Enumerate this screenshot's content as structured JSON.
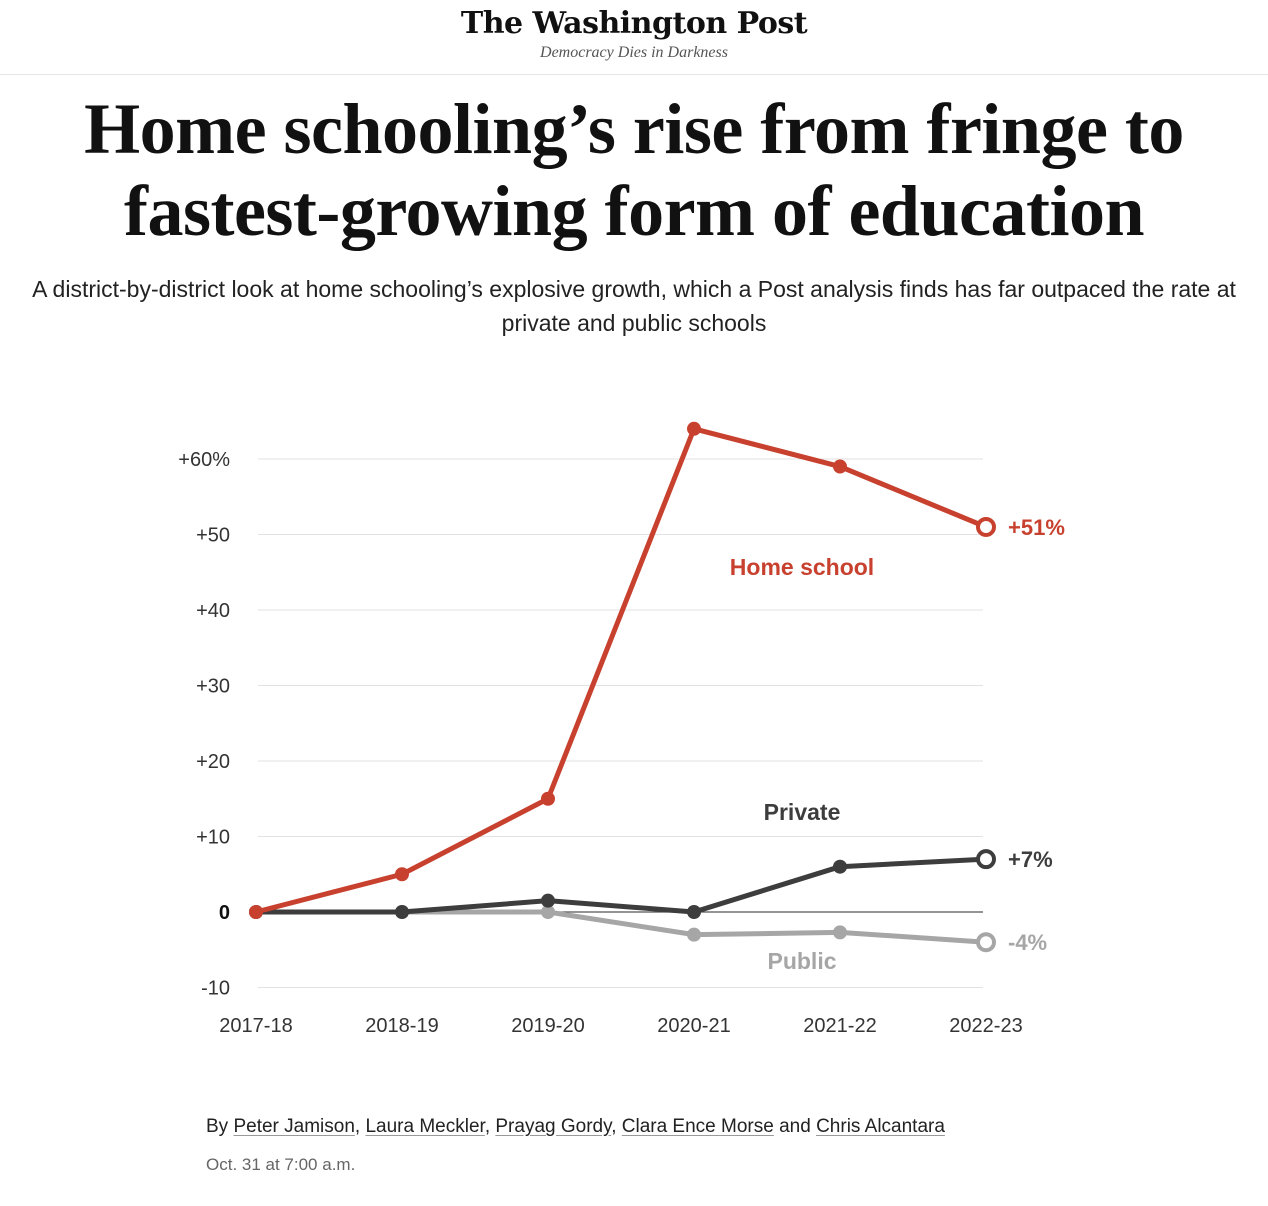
{
  "masthead": {
    "logo": "The Washington Post",
    "tagline": "Democracy Dies in Darkness"
  },
  "article": {
    "headline_line1": "Home schooling’s rise from fringe to",
    "headline_line2": "fastest-growing form of education",
    "dek": "A district-by-district look at home schooling’s explosive growth, which a Post analysis finds has far outpaced the rate at private and public schools",
    "byline_prefix": "By",
    "authors": [
      "Peter Jamison",
      "Laura Meckler",
      "Prayag Gordy",
      "Clara Ence Morse",
      "Chris Alcantara"
    ],
    "byline_separator": ", ",
    "byline_and": " and ",
    "date": "Oct. 31 at 7:00 a.m."
  },
  "colors": {
    "home_school": "#c8412f",
    "private": "#3d3d3d",
    "public": "#a6a6a6",
    "grid": "#e2e2e2",
    "zero_line": "#555555"
  },
  "chart_data": {
    "type": "line",
    "categories": [
      "2017-18",
      "2018-19",
      "2019-20",
      "2020-21",
      "2021-22",
      "2022-23"
    ],
    "y_tick_values": [
      60,
      50,
      40,
      30,
      20,
      10,
      0,
      -10
    ],
    "y_tick_labels": [
      "+60%",
      "+50",
      "+40",
      "+30",
      "+20",
      "+10",
      "0",
      "-10"
    ],
    "ylim": [
      -10,
      60
    ],
    "grid": true,
    "series": [
      {
        "name": "Home school",
        "color": "#c8412f",
        "values": [
          0,
          5,
          15,
          64,
          59,
          51
        ],
        "end_label": "+51%"
      },
      {
        "name": "Private",
        "color": "#3d3d3d",
        "values": [
          0,
          0,
          1.5,
          0,
          6,
          7
        ],
        "end_label": "+7%"
      },
      {
        "name": "Public",
        "color": "#a6a6a6",
        "values": [
          0,
          0,
          0,
          -3,
          -2.7,
          -4
        ],
        "end_label": "-4%"
      }
    ]
  }
}
